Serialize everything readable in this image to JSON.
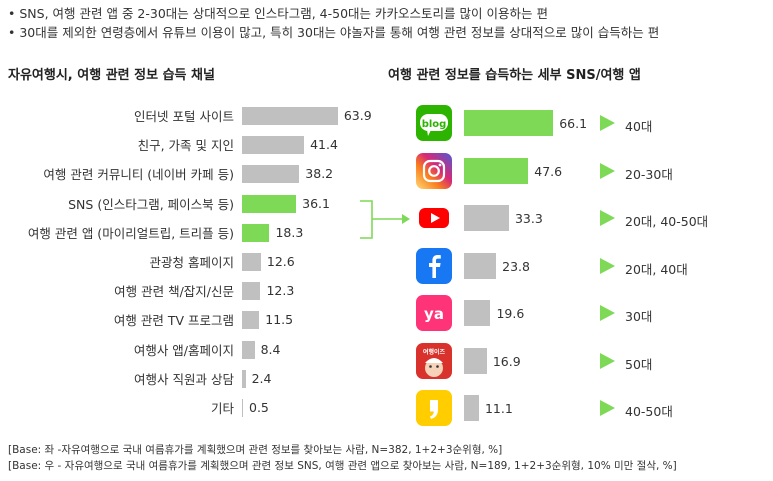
{
  "notes": [
    "SNS, 여행 관련 앱 중 2-30대는 상대적으로 인스타그램, 4-50대는 카카오스토리를 많이 이용하는 편",
    "30대를 제외한 연령층에서 유튜브 이용이 많고, 특히 30대는 야놀자를 통해 여행 관련 정보를 상대적으로 많이 습득하는 편"
  ],
  "chart_data": [
    {
      "type": "bar",
      "orientation": "horizontal",
      "title": "자유여행시, 여행 관련 정보 습득 채널",
      "categories": [
        "인터넷 포털 사이트",
        "친구, 가족 및 지인",
        "여행 관련 커뮤니티 (네이버 카페 등)",
        "SNS (인스타그램, 페이스북 등)",
        "여행 관련 앱 (마이리얼트립, 트리플 등)",
        "관광청 홈페이지",
        "여행 관련 책/잡지/신문",
        "여행 관련 TV 프로그램",
        "여행사 앱/홈페이지",
        "여행사 직원과 상담",
        "기타"
      ],
      "values": [
        63.9,
        41.4,
        38.2,
        36.1,
        18.3,
        12.6,
        12.3,
        11.5,
        8.4,
        2.4,
        0.5
      ],
      "highlighted": [
        3,
        4
      ],
      "colors": {
        "default": "#c0c0c0",
        "highlight": "#7ed957"
      },
      "xlim": [
        0,
        100
      ]
    },
    {
      "type": "bar",
      "orientation": "horizontal",
      "title": "여행 관련 정보를 습득하는 세부 SNS/여행 앱",
      "categories": [
        "blog",
        "instagram",
        "youtube",
        "facebook",
        "yanolja",
        "kakaostory",
        "kakaopage"
      ],
      "icon_names": [
        "blog-icon",
        "instagram-icon",
        "youtube-icon",
        "facebook-icon",
        "yanolja-icon",
        "kakaostory-icon",
        "kakaopage-icon"
      ],
      "blog_icon_text": "blog",
      "yanolja_icon_text": "ya",
      "kakaostory_icon_text": "여행이즈",
      "values": [
        66.1,
        47.6,
        33.3,
        23.8,
        19.6,
        16.9,
        11.1
      ],
      "highlighted": [
        0,
        1
      ],
      "age_groups": [
        "40대",
        "20-30대",
        "20대, 40-50대",
        "20대, 40대",
        "30대",
        "50대",
        "40-50대"
      ],
      "colors": {
        "default": "#c0c0c0",
        "highlight": "#7ed957",
        "arrow": "#7ed957"
      },
      "xlim": [
        0,
        100
      ]
    }
  ],
  "base_notes": [
    "[Base: 좌 -자유여행으로 국내 여름휴가를 계획했으며 관련 정보를 찾아보는 사람, N=382, 1+2+3순위형, %]",
    "[Base: 우 - 자유여행으로 국내 여름휴가를 계획했으며 관련 정보 SNS, 여행 관련 앱으로 찾아보는 사람, N=189, 1+2+3순위형, 10% 미만 절삭, %]"
  ]
}
